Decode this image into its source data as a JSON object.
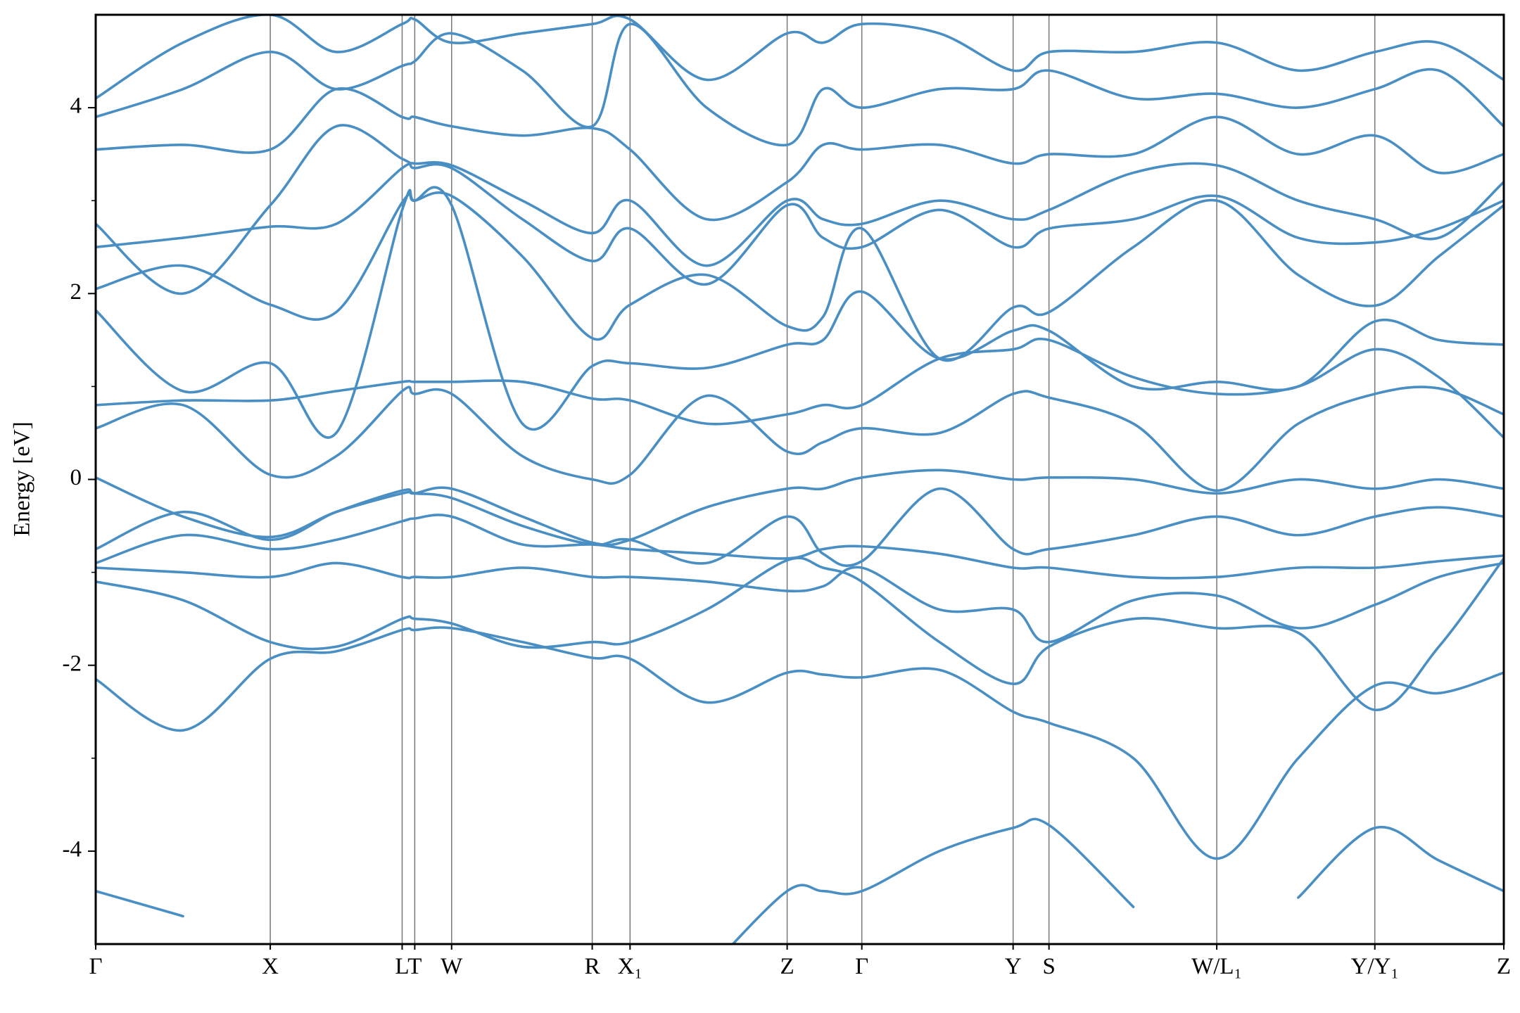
{
  "chart_data": {
    "type": "line",
    "ylabel": "Energy [eV]",
    "color": "#4a8fc4",
    "xgrid": true,
    "xlim": [
      0,
      14.52
    ],
    "ylim": [
      -5,
      5
    ],
    "yticks": [
      -4,
      -2,
      0,
      2,
      4
    ],
    "yminorticks": [
      -3,
      -1,
      1,
      3
    ],
    "xticks": [
      {
        "value": 0,
        "label": "Γ"
      },
      {
        "value": 1.8,
        "label": "X"
      },
      {
        "value": 3.16,
        "label": "L"
      },
      {
        "value": 3.29,
        "label": "T"
      },
      {
        "value": 3.67,
        "label": "W"
      },
      {
        "value": 5.12,
        "label": "R"
      },
      {
        "value": 5.51,
        "label": "X₁"
      },
      {
        "value": 7.13,
        "label": "Z"
      },
      {
        "value": 7.9,
        "label": "Γ"
      },
      {
        "value": 9.46,
        "label": "Y"
      },
      {
        "value": 9.83,
        "label": "S"
      },
      {
        "value": 11.56,
        "label": "W/L₁"
      },
      {
        "value": 13.19,
        "label": "Y/Y₁"
      },
      {
        "value": 14.52,
        "label": "Z"
      }
    ],
    "x": [
      0,
      0.9,
      1.8,
      2.48,
      3.16,
      3.29,
      3.67,
      4.4,
      5.12,
      5.51,
      6.3,
      7.13,
      7.5,
      7.9,
      8.7,
      9.46,
      9.83,
      10.7,
      11.56,
      12.4,
      13.19,
      13.85,
      14.52
    ],
    "series": [
      {
        "values": [
          -4.43,
          -4.7,
          null,
          null,
          null,
          null,
          null,
          null,
          null,
          null,
          -5.3,
          -4.43,
          -4.43,
          -4.43,
          -4.0,
          -3.75,
          -3.72,
          -4.6,
          null,
          -4.5,
          -3.75,
          -4.1,
          -4.43
        ]
      },
      {
        "values": [
          -2.15,
          -2.7,
          -1.93,
          -1.85,
          -1.62,
          -1.62,
          -1.6,
          -1.75,
          -1.92,
          -1.93,
          -2.4,
          -2.08,
          -2.1,
          -2.13,
          -2.05,
          -2.5,
          -2.62,
          -3.0,
          -4.08,
          -3.0,
          -2.22,
          -2.3,
          -2.08
        ]
      },
      {
        "values": [
          -1.1,
          -1.3,
          -1.75,
          -1.8,
          -1.5,
          -1.5,
          -1.55,
          -1.8,
          -1.75,
          -1.75,
          -1.4,
          -0.87,
          -0.95,
          -1.1,
          -1.75,
          -2.2,
          -1.8,
          -1.5,
          -1.6,
          -1.65,
          -2.48,
          -1.8,
          -0.85
        ]
      },
      {
        "values": [
          -0.95,
          -1.0,
          -1.05,
          -0.9,
          -1.05,
          -1.05,
          -1.05,
          -0.95,
          -1.05,
          -1.05,
          -1.1,
          -1.2,
          -1.15,
          -0.95,
          -1.4,
          -1.4,
          -1.75,
          -1.3,
          -1.25,
          -1.6,
          -1.35,
          -1.05,
          -0.9
        ]
      },
      {
        "values": [
          -0.9,
          -0.6,
          -0.75,
          -0.65,
          -0.45,
          -0.42,
          -0.4,
          -0.7,
          -0.7,
          -0.75,
          -0.8,
          -0.85,
          -0.75,
          -0.72,
          -0.8,
          -0.95,
          -0.95,
          -1.05,
          -1.05,
          -0.95,
          -0.95,
          -0.88,
          -0.82
        ]
      },
      {
        "values": [
          -0.75,
          -0.35,
          -0.65,
          -0.35,
          -0.12,
          -0.15,
          -0.2,
          -0.5,
          -0.7,
          -0.65,
          -0.9,
          -0.4,
          -0.8,
          -0.88,
          -0.1,
          -0.75,
          -0.75,
          -0.6,
          -0.4,
          -0.6,
          -0.4,
          -0.3,
          -0.4
        ]
      },
      {
        "values": [
          0.02,
          -0.4,
          -0.62,
          -0.35,
          -0.15,
          -0.15,
          -0.1,
          -0.4,
          -0.68,
          -0.65,
          -0.3,
          -0.1,
          -0.1,
          0.02,
          0.1,
          0.0,
          0.02,
          0.0,
          -0.15,
          0.0,
          -0.1,
          0.0,
          -0.1
        ]
      },
      {
        "values": [
          0.55,
          0.8,
          0.05,
          0.25,
          0.95,
          0.92,
          0.92,
          0.25,
          0.0,
          0.05,
          0.9,
          0.3,
          0.4,
          0.55,
          0.5,
          0.92,
          0.88,
          0.6,
          -0.12,
          0.6,
          0.92,
          0.98,
          0.7
        ]
      },
      {
        "values": [
          0.8,
          0.85,
          0.85,
          0.95,
          1.05,
          1.05,
          1.05,
          1.05,
          0.87,
          0.85,
          0.6,
          0.7,
          0.8,
          0.8,
          1.3,
          1.4,
          1.5,
          1.1,
          0.92,
          1.0,
          1.4,
          1.1,
          0.45
        ]
      },
      {
        "values": [
          1.82,
          0.95,
          1.25,
          0.5,
          2.9,
          3.0,
          2.95,
          0.6,
          1.22,
          1.25,
          1.2,
          1.45,
          1.5,
          2.02,
          1.3,
          1.6,
          1.6,
          1.0,
          1.05,
          1.0,
          1.7,
          1.5,
          1.45
        ]
      },
      {
        "values": [
          2.05,
          2.3,
          1.88,
          1.8,
          2.98,
          3.0,
          3.05,
          2.4,
          1.52,
          1.88,
          2.2,
          1.65,
          1.75,
          2.7,
          1.3,
          1.85,
          1.8,
          2.5,
          3.0,
          2.2,
          1.87,
          2.4,
          2.95
        ]
      },
      {
        "values": [
          2.5,
          2.6,
          2.72,
          2.75,
          3.35,
          3.35,
          3.35,
          2.8,
          2.35,
          2.7,
          2.1,
          2.95,
          2.6,
          2.5,
          2.9,
          2.5,
          2.7,
          2.8,
          3.05,
          2.6,
          2.55,
          2.7,
          3.0
        ]
      },
      {
        "values": [
          2.75,
          2.0,
          2.95,
          3.8,
          3.45,
          3.4,
          3.38,
          3.0,
          2.65,
          3.0,
          2.3,
          3.0,
          2.8,
          2.75,
          3.0,
          2.8,
          2.9,
          3.3,
          3.38,
          3.0,
          2.8,
          2.6,
          3.2
        ]
      },
      {
        "values": [
          3.55,
          3.6,
          3.55,
          4.2,
          3.9,
          3.9,
          3.8,
          3.7,
          3.78,
          3.55,
          2.8,
          3.2,
          3.6,
          3.55,
          3.6,
          3.4,
          3.5,
          3.5,
          3.9,
          3.5,
          3.7,
          3.3,
          3.5
        ]
      },
      {
        "values": [
          3.9,
          4.2,
          4.6,
          4.2,
          4.45,
          4.5,
          4.8,
          4.4,
          3.8,
          4.9,
          4.0,
          3.6,
          4.2,
          4.0,
          4.2,
          4.2,
          4.4,
          4.1,
          4.15,
          4.0,
          4.2,
          4.4,
          3.8
        ]
      },
      {
        "values": [
          4.1,
          4.7,
          5.0,
          4.6,
          4.9,
          4.95,
          4.7,
          4.8,
          4.9,
          4.95,
          4.3,
          4.8,
          4.7,
          4.9,
          4.8,
          4.4,
          4.6,
          4.6,
          4.7,
          4.4,
          4.6,
          4.7,
          4.3
        ]
      }
    ]
  }
}
